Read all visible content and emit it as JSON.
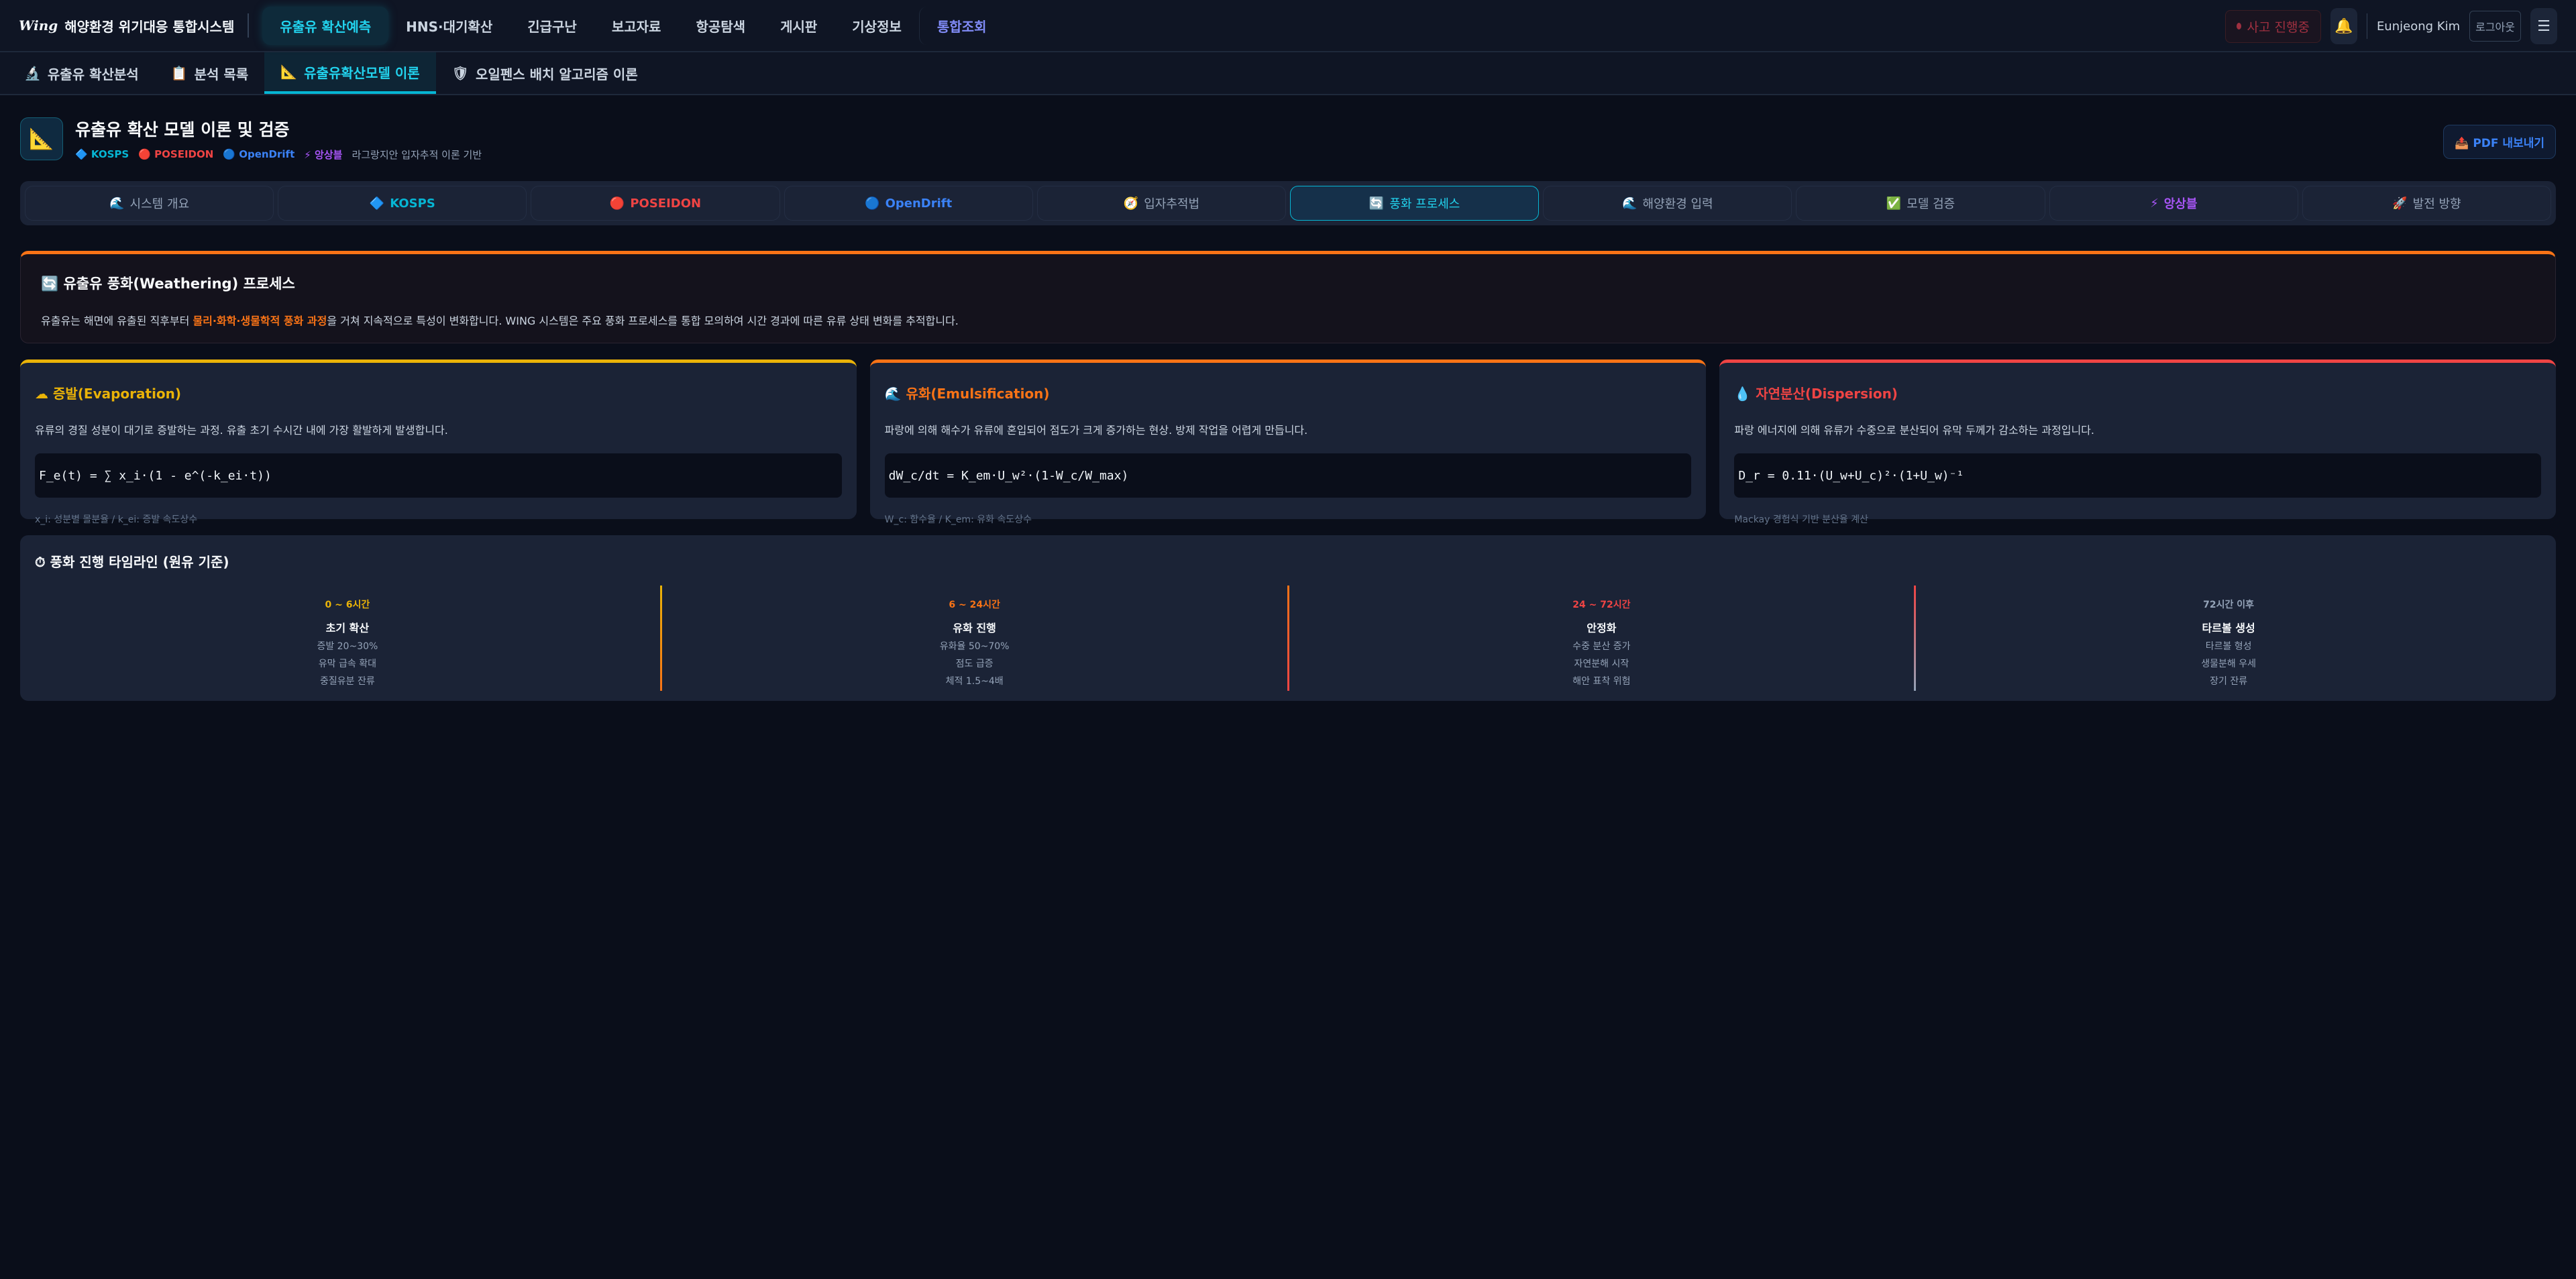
{
  "topnav": {
    "logo": "Wing",
    "system_title": "해양환경 위기대응 통합시스템",
    "items": [
      "유출유 확산예측",
      "HNS·대기확산",
      "긴급구난",
      "보고자료",
      "항공탐색",
      "게시판",
      "기상정보",
      "통합조회"
    ],
    "status_badge": "사고 진행중",
    "user": "Eunjeong Kim",
    "logout": "로그아웃",
    "bell_icon": "bell-icon",
    "menu_icon": "hamburger-icon"
  },
  "subnav": {
    "items": [
      {
        "icon": "🔬",
        "label": "유출유 확산분석"
      },
      {
        "icon": "📋",
        "label": "분석 목록"
      },
      {
        "icon": "📐",
        "label": "유출유확산모델 이론"
      },
      {
        "icon": "🛡",
        "label": "오일펜스 배치 알고리즘 이론"
      }
    ]
  },
  "header": {
    "icon": "📐",
    "title": "유출유 확산 모델 이론 및 검증",
    "tags": [
      {
        "icon": "🔷",
        "label": "KOSPS",
        "color": "#06b6d4"
      },
      {
        "icon": "🔴",
        "label": "POSEIDON",
        "color": "#ef4444"
      },
      {
        "icon": "🔵",
        "label": "OpenDrift",
        "color": "#3b82f6"
      },
      {
        "icon": "⚡",
        "label": "앙상블",
        "color": "#a855f7"
      }
    ],
    "subtitle": "라그랑지안 입자추적 이론 기반",
    "pdf_button": "PDF 내보내기"
  },
  "tabs": [
    {
      "icon": "🌊",
      "label": "시스템 개요"
    },
    {
      "icon": "🔷",
      "label": "KOSPS",
      "color": "#06b6d4"
    },
    {
      "icon": "🔴",
      "label": "POSEIDON",
      "color": "#ef4444"
    },
    {
      "icon": "🔵",
      "label": "OpenDrift",
      "color": "#3b82f6"
    },
    {
      "icon": "🧭",
      "label": "입자추적법"
    },
    {
      "icon": "🔄",
      "label": "풍화 프로세스"
    },
    {
      "icon": "🌊",
      "label": "해양환경 입력"
    },
    {
      "icon": "✅",
      "label": "모델 검증"
    },
    {
      "icon": "⚡",
      "label": "앙상블",
      "color": "#a855f7"
    },
    {
      "icon": "🚀",
      "label": "발전 방향"
    }
  ],
  "active_tab": "풍화 프로세스",
  "intro": {
    "icon": "🔄",
    "title": "유출유 풍화(Weathering) 프로세스",
    "text_before": "유출유는 해면에 유출된 직후부터 ",
    "highlight": "물리·화학·생물학적 풍화 과정",
    "text_after": "을 거쳐 지속적으로 특성이 변화합니다. WING 시스템은 주요 풍화 프로세스를 통합 모의하여 시간 경과에 따른 유류 상태 변화를 추적합니다."
  },
  "cards": [
    {
      "icon": "☁",
      "title": "증발(Evaporation)",
      "color": "#eab308",
      "desc": "유류의 경질 성분이 대기로 증발하는 과정. 유출 초기 수시간 내에 가장 활발하게 발생합니다.",
      "formula": "F_e(t) = ∑ x_i·(1 - e^(-k_ei·t))",
      "note": "x_i: 성분별 몰분율 / k_ei: 증발 속도상수"
    },
    {
      "icon": "🌊",
      "title": "유화(Emulsification)",
      "color": "#f97316",
      "desc": "파랑에 의해 해수가 유류에 혼입되어 점도가 크게 증가하는 현상. 방제 작업을 어렵게 만듭니다.",
      "formula": "dW_c/dt = K_em·U_w²·(1-W_c/W_max)",
      "note": "W_c: 함수율 / K_em: 유화 속도상수"
    },
    {
      "icon": "💧",
      "title": "자연분산(Dispersion)",
      "color": "#ef4444",
      "desc": "파랑 에너지에 의해 유류가 수중으로 분산되어 유막 두께가 감소하는 과정입니다.",
      "formula": "D_r = 0.11·(U_w+U_c)²·(1+U_w)⁻¹",
      "note": "Mackay 경험식 기반 분산율 계산"
    }
  ],
  "timeline": {
    "icon": "⏱",
    "title": "풍화 진행 타임라인 (원유 기준)",
    "phases": [
      {
        "range": "0 ~ 6시간",
        "color": "#eab308",
        "phase": "초기 확산",
        "items": [
          "증발 20~30%",
          "유막 급속 확대",
          "중질유분 잔류"
        ]
      },
      {
        "range": "6 ~ 24시간",
        "color": "#f97316",
        "phase": "유화 진행",
        "items": [
          "유화율 50~70%",
          "점도 급증",
          "체적 1.5~4배"
        ]
      },
      {
        "range": "24 ~ 72시간",
        "color": "#ef4444",
        "phase": "안정화",
        "items": [
          "수중 분산 증가",
          "자연분해 시작",
          "해안 표착 위험"
        ]
      },
      {
        "range": "72시간 이후",
        "color": "#94a3b8",
        "phase": "타르볼 생성",
        "items": [
          "타르볼 형성",
          "생물분해 우세",
          "장기 잔류"
        ]
      }
    ]
  }
}
